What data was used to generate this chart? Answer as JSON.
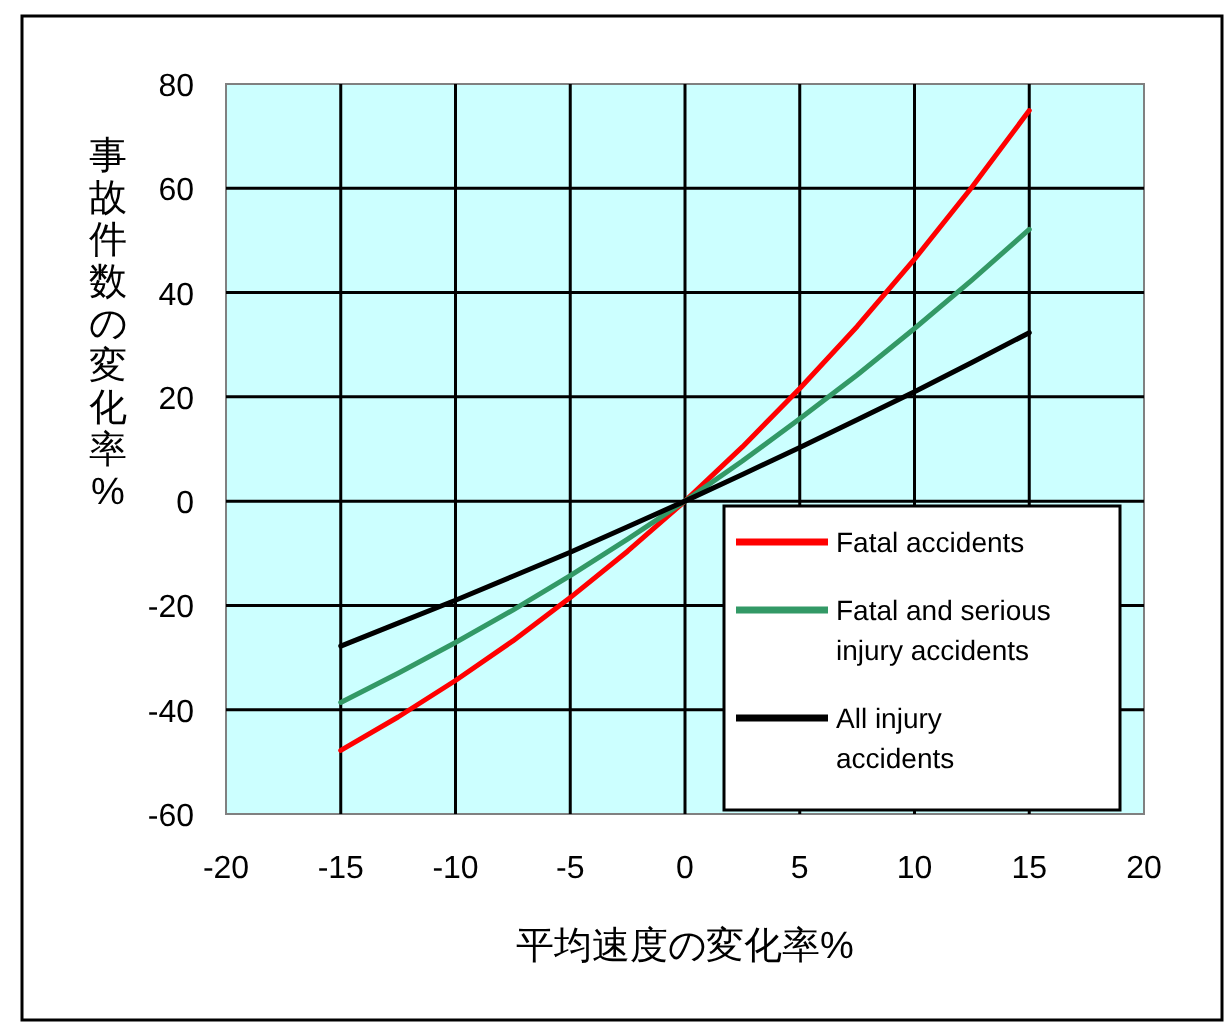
{
  "chart_data": {
    "type": "line",
    "xlabel": "平均速度の変化率%",
    "ylabel": "事故件数の変化率%",
    "x": [
      -15,
      -12.5,
      -10,
      -7.5,
      -5,
      -2.5,
      0,
      2.5,
      5,
      7.5,
      10,
      12.5,
      15
    ],
    "series": [
      {
        "name": "Fatal accidents",
        "color": "#ff0000",
        "values": [
          -47.8,
          -41.4,
          -34.4,
          -26.8,
          -18.5,
          -9.6,
          0,
          10.4,
          21.6,
          33.5,
          46.4,
          60.2,
          74.9
        ]
      },
      {
        "name": "Fatal and serious injury accidents",
        "color": "#339966",
        "values": [
          -38.6,
          -33,
          -27.1,
          -20.9,
          -14.3,
          -7.3,
          0,
          7.7,
          15.8,
          24.2,
          33.1,
          42.4,
          52.1
        ]
      },
      {
        "name": "All injury accidents",
        "color": "#000000",
        "values": [
          -27.8,
          -23.4,
          -19,
          -14.4,
          -9.8,
          -4.9,
          0,
          5.1,
          10.3,
          15.6,
          21,
          26.6,
          32.3
        ]
      }
    ],
    "xlim": [
      -20,
      20
    ],
    "xticks": [
      -20,
      -15,
      -10,
      -5,
      0,
      5,
      10,
      15,
      20
    ],
    "ylim": [
      -60,
      80
    ],
    "yticks": [
      -60,
      -40,
      -20,
      0,
      20,
      40,
      60,
      80
    ],
    "grid": true,
    "legend": "bottom right",
    "marker": "none",
    "line_style": "solid"
  }
}
